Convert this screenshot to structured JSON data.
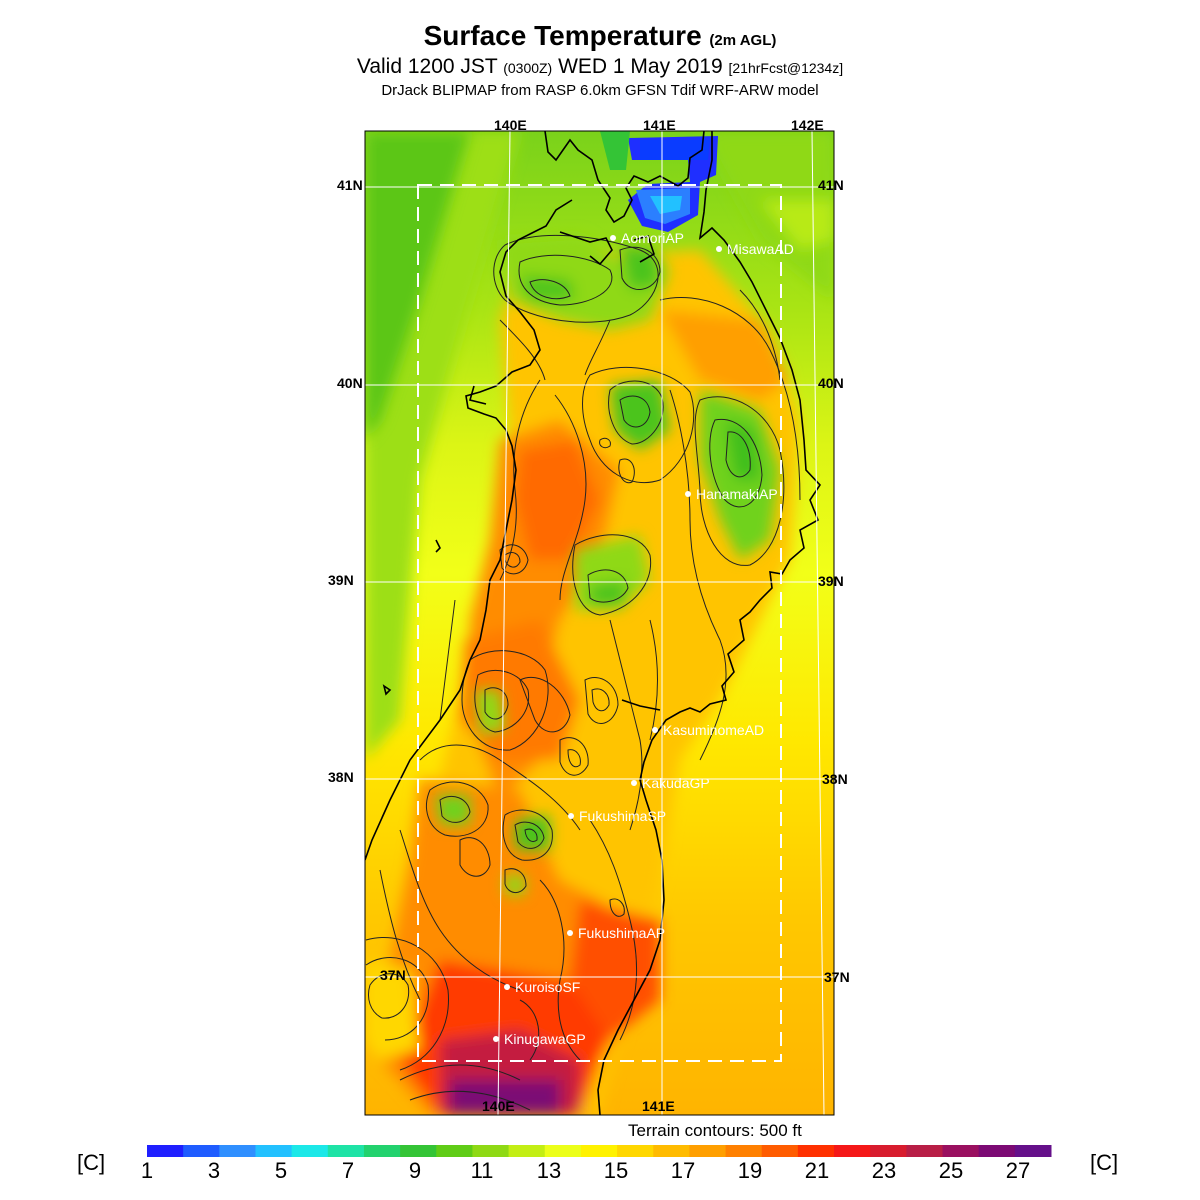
{
  "title": {
    "main": "Surface Temperature",
    "main_suffix": "(2m AGL)",
    "valid_prefix": "Valid 1200 JST",
    "valid_utc": "(0300Z)",
    "valid_date": "WED 1 May 2019",
    "forecast": "[21hrFcst@1234z]",
    "model": "DrJack BLIPMAP from RASP 6.0km GFSN Tdif WRF-ARW model"
  },
  "axes": {
    "top_lon": [
      "140E",
      "141E",
      "142E"
    ],
    "bottom_lon": [
      "140E",
      "141E"
    ],
    "left_lat": [
      "41N",
      "40N",
      "39N",
      "38N",
      "37N"
    ],
    "right_lat": [
      "41N",
      "40N",
      "39N",
      "38N",
      "37N"
    ]
  },
  "stations": [
    {
      "name": "AomoriAP"
    },
    {
      "name": "MisawaAD"
    },
    {
      "name": "HanamakiAP"
    },
    {
      "name": "KasuminomeAD"
    },
    {
      "name": "KakudaGP"
    },
    {
      "name": "FukushimaSP"
    },
    {
      "name": "FukushimaAP"
    },
    {
      "name": "KuroisoSF"
    },
    {
      "name": "KinugawaGP"
    }
  ],
  "terrain_note": "Terrain contours: 500 ft",
  "colorbar": {
    "unit": "[C]",
    "tick_labels": [
      "1",
      "3",
      "5",
      "7",
      "9",
      "11",
      "13",
      "15",
      "17",
      "19",
      "21",
      "23",
      "25",
      "27"
    ],
    "colors": [
      "#1f1fff",
      "#1f5cff",
      "#2f8fff",
      "#22c1ff",
      "#1ce8e8",
      "#1ee3a6",
      "#22d26e",
      "#34c436",
      "#60cc16",
      "#8fd914",
      "#c3ee14",
      "#ecff1a",
      "#fff200",
      "#ffd700",
      "#ffbb00",
      "#ff9f00",
      "#ff8000",
      "#ff5c00",
      "#ff3000",
      "#f51818",
      "#d81c2e",
      "#b81e46",
      "#9a1060",
      "#7c0a74",
      "#65108a"
    ]
  }
}
